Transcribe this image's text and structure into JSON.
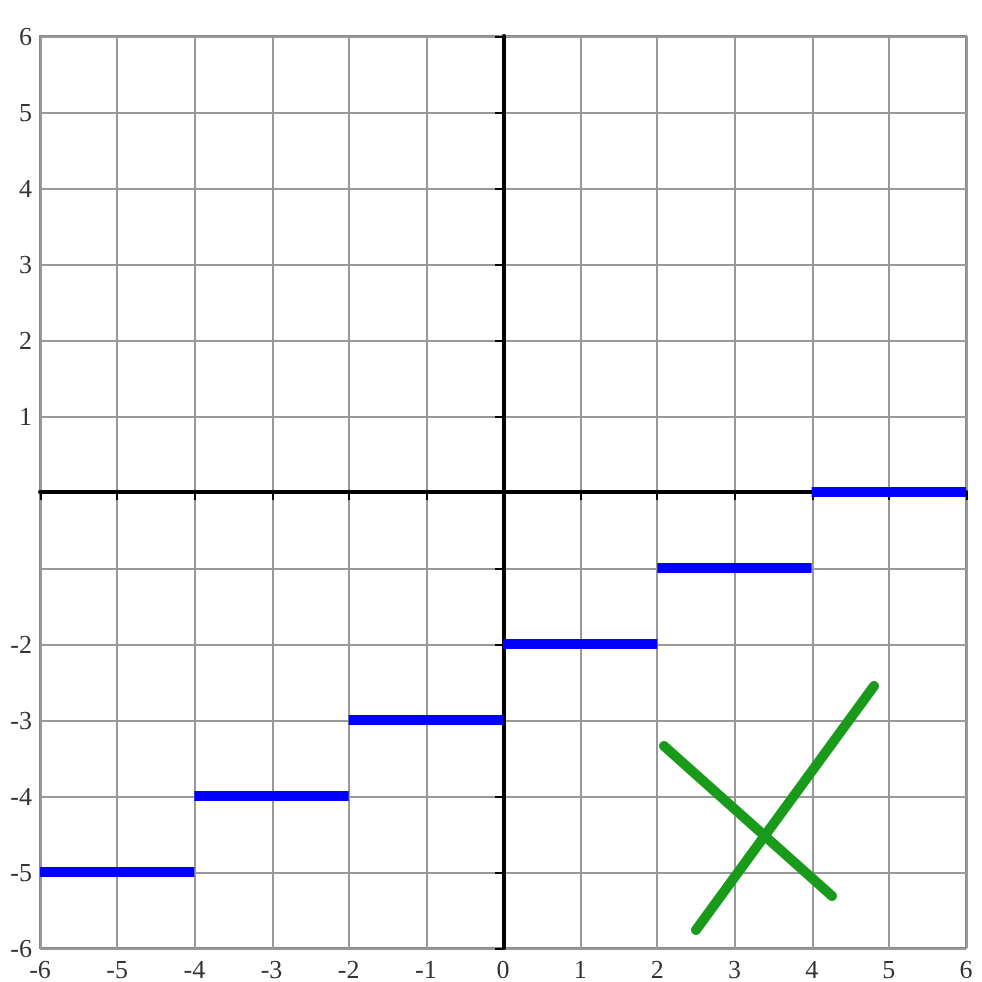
{
  "chart_data": {
    "type": "line",
    "series": [
      {
        "color": "#0000ff",
        "x": [
          -6,
          -4
        ],
        "values": [
          -5,
          -5
        ]
      },
      {
        "color": "#0000ff",
        "x": [
          -4,
          -2
        ],
        "values": [
          -4,
          -4
        ]
      },
      {
        "color": "#0000ff",
        "x": [
          -2,
          0
        ],
        "values": [
          -3,
          -3
        ]
      },
      {
        "color": "#0000ff",
        "x": [
          0,
          2
        ],
        "values": [
          -2,
          -2
        ]
      },
      {
        "color": "#0000ff",
        "x": [
          2,
          4
        ],
        "values": [
          -1,
          -1
        ]
      },
      {
        "color": "#0000ff",
        "x": [
          4,
          6
        ],
        "values": [
          0,
          0
        ]
      }
    ],
    "xlim": [
      -6,
      6
    ],
    "ylim": [
      -6,
      6
    ],
    "xticks": [
      -6,
      -5,
      -4,
      -3,
      -2,
      -1,
      0,
      1,
      2,
      3,
      4,
      5,
      6
    ],
    "yticks": [
      -6,
      -5,
      -4,
      -3,
      -2,
      {
        "value": -1,
        "label": null
      },
      {
        "value": 0,
        "label": null
      },
      1,
      2,
      3,
      4,
      5,
      6
    ],
    "grid": true,
    "marker": "none",
    "line_style": "solid"
  }
}
